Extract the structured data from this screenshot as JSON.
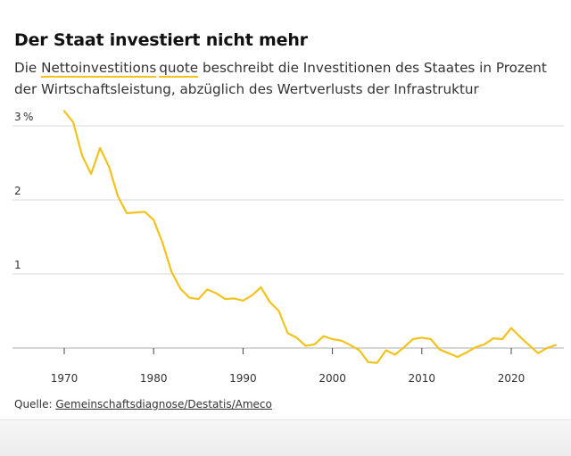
{
  "header": {
    "title": "Der Staat investiert nicht mehr",
    "subtitle_prefix": "Die ",
    "subtitle_term_a": "Nettoinvestitions",
    "subtitle_term_b": "quote",
    "subtitle_rest": " beschreibt die Investitionen des Staates in Prozent der Wirtschaftsleistung, abzüglich des Wertverlusts der Infrastruktur"
  },
  "source": {
    "label": "Quelle: ",
    "link": "Gemeinschaftsdiagnose/Destatis/Ameco"
  },
  "colors": {
    "line": "#f2c31d",
    "grid": "#d9d9d9",
    "baseline": "#bdbdbd"
  },
  "chart_data": {
    "type": "line",
    "title": "Der Staat investiert nicht mehr",
    "xlabel": "",
    "ylabel": "",
    "y_unit_label": "%",
    "xlim": [
      1966,
      2026
    ],
    "ylim": [
      -0.25,
      3.2
    ],
    "y_ticks": [
      1,
      2,
      3
    ],
    "x_ticks": [
      1970,
      1980,
      1990,
      2000,
      2010,
      2020
    ],
    "grid": true,
    "x": [
      1970,
      1971,
      1972,
      1973,
      1974,
      1975,
      1976,
      1977,
      1978,
      1979,
      1980,
      1981,
      1982,
      1983,
      1984,
      1985,
      1986,
      1987,
      1988,
      1989,
      1990,
      1991,
      1992,
      1993,
      1994,
      1995,
      1996,
      1997,
      1998,
      1999,
      2000,
      2001,
      2002,
      2003,
      2004,
      2005,
      2006,
      2007,
      2008,
      2009,
      2010,
      2011,
      2012,
      2013,
      2014,
      2015,
      2016,
      2017,
      2018,
      2019,
      2020,
      2021,
      2022,
      2023,
      2024,
      2025
    ],
    "values": [
      3.2,
      3.05,
      2.6,
      2.35,
      2.7,
      2.45,
      2.05,
      1.82,
      1.83,
      1.84,
      1.73,
      1.42,
      1.03,
      0.8,
      0.68,
      0.66,
      0.79,
      0.74,
      0.66,
      0.67,
      0.64,
      0.71,
      0.82,
      0.62,
      0.5,
      0.2,
      0.14,
      0.03,
      0.05,
      0.16,
      0.12,
      0.1,
      0.04,
      -0.03,
      -0.19,
      -0.2,
      -0.03,
      -0.09,
      0.01,
      0.12,
      0.14,
      0.12,
      -0.02,
      -0.07,
      -0.12,
      -0.06,
      0.01,
      0.05,
      0.13,
      0.12,
      0.27,
      0.15,
      0.04,
      -0.07,
      0.0,
      0.04
    ]
  }
}
